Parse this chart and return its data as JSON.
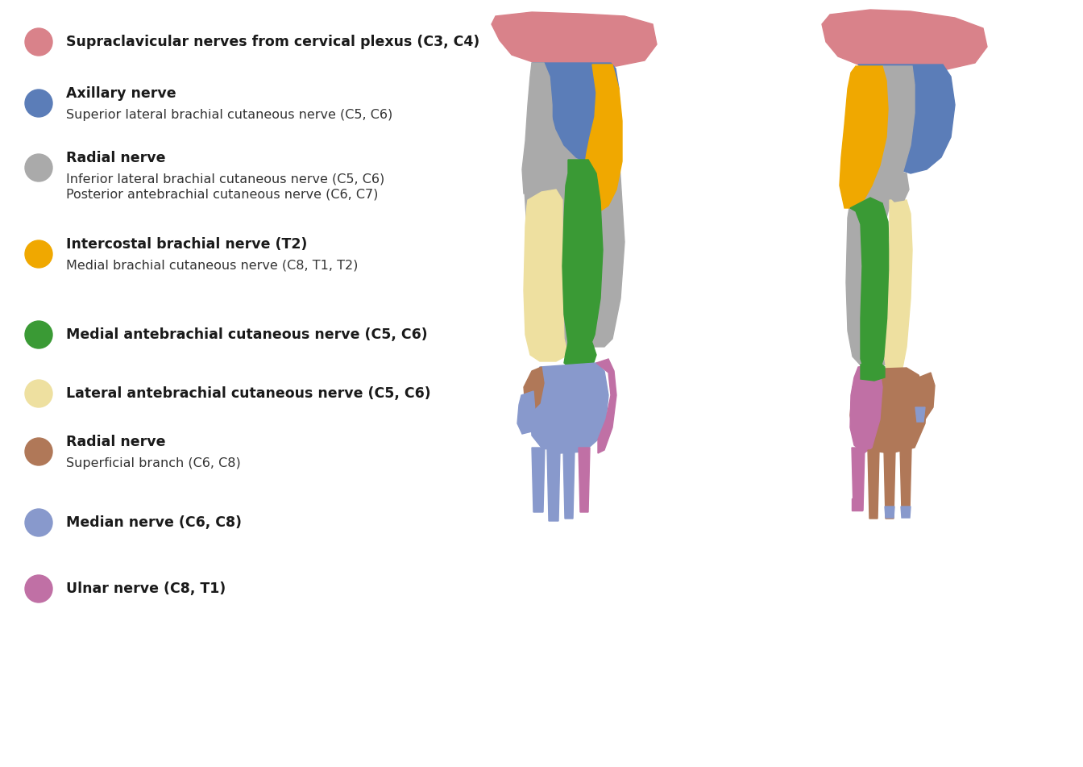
{
  "colors": {
    "supraclavicular": "#D9828A",
    "axillary": "#5B7DB8",
    "radial_gray": "#AAAAAA",
    "intercostal": "#F0A800",
    "medial_antebrachial": "#3A9A35",
    "lateral_antebrachial": "#EEE0A0",
    "radial_superficial": "#B07858",
    "median": "#8899CC",
    "ulnar": "#C070A5",
    "background": "#FFFFFF"
  },
  "legend": [
    {
      "color": "#D9828A",
      "bold": "Supraclavicular nerves from cervical plexus (C3, C4)",
      "sub": ""
    },
    {
      "color": "#5B7DB8",
      "bold": "Axillary nerve",
      "sub": "Superior lateral brachial cutaneous nerve (C5, C6)"
    },
    {
      "color": "#AAAAAA",
      "bold": "Radial nerve",
      "sub": "Inferior lateral brachial cutaneous nerve (C5, C6)\nPosterior antebrachial cutaneous nerve (C6, C7)"
    },
    {
      "color": "#F0A800",
      "bold": "Intercostal brachial nerve (T2)",
      "sub": "Medial brachial cutaneous nerve (C8, T1, T2)"
    },
    {
      "color": "#3A9A35",
      "bold": "Medial antebrachial cutaneous nerve (C5, C6)",
      "sub": ""
    },
    {
      "color": "#EEE0A0",
      "bold": "Lateral antebrachial cutaneous nerve (C5, C6)",
      "sub": ""
    },
    {
      "color": "#B07858",
      "bold": "Radial nerve",
      "sub": "Superficial branch (C6, C8)"
    },
    {
      "color": "#8899CC",
      "bold": "Median nerve (C6, C8)",
      "sub": ""
    },
    {
      "color": "#C070A5",
      "bold": "Ulnar nerve (C8, T1)",
      "sub": ""
    }
  ],
  "fig_width": 13.44,
  "fig_height": 9.51,
  "dpi": 100
}
